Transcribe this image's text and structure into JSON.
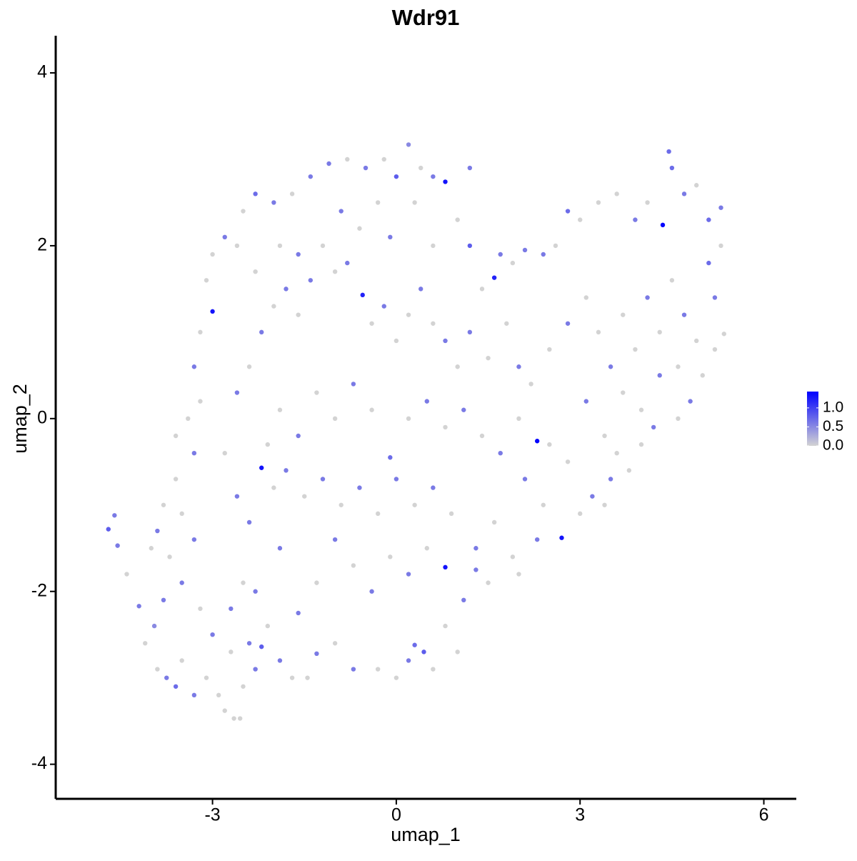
{
  "chart_data": {
    "type": "scatter",
    "title": "Wdr91",
    "x_label": "umap_1",
    "y_label": "umap_2",
    "xlim": [
      -5.56,
      6.53
    ],
    "xticks": [
      -3,
      0,
      3,
      6
    ],
    "ylim": [
      -4.4,
      4.43
    ],
    "yticks": [
      -4,
      -2,
      0,
      2,
      4
    ],
    "color_low": "#d3d3d3",
    "color_high": "#0000ff",
    "colorlim": [
      0,
      1.43
    ],
    "colorticks": [
      {
        "value": 0,
        "label": "0.0"
      },
      {
        "value": 0.5,
        "label": "0.5"
      },
      {
        "value": 1,
        "label": "1.0"
      }
    ],
    "x": [
      -4.7,
      -4.6,
      -4.55,
      -4.2,
      -4.4,
      -4.1,
      -3.95,
      -3.9,
      -3.75,
      -3.6,
      -3.5,
      -3.3,
      -3.1,
      -2.9,
      -2.65,
      -2.55,
      -2.8,
      -2.5,
      -2.3,
      -2.2,
      -1.9,
      -1.7,
      -1.45,
      -1.3,
      -1.0,
      -0.7,
      -0.3,
      0.0,
      0.2,
      0.3,
      0.45,
      0.6,
      1.0,
      0.8,
      1.1,
      1.3,
      1.5,
      1.3,
      1.6,
      1.9,
      2.0,
      2.3,
      2.4,
      2.1,
      2.7,
      3.0,
      3.2,
      3.4,
      3.5,
      3.6,
      3.8,
      4.0,
      4.2,
      4.6,
      4.8,
      5.0,
      5.2,
      5.35,
      5.2,
      5.1,
      5.3,
      5.3,
      5.1,
      4.9,
      4.7,
      4.45,
      4.5,
      4.35,
      4.1,
      3.9,
      3.6,
      3.3,
      3.0,
      2.8,
      2.6,
      2.4,
      2.1,
      1.9,
      1.7,
      1.6,
      1.4,
      1.2,
      1.0,
      0.8,
      0.6,
      0.4,
      0.2,
      0.0,
      -0.2,
      -0.5,
      -0.8,
      -1.1,
      -1.4,
      -1.7,
      -2.0,
      -2.3,
      -2.5,
      -2.6,
      -2.8,
      -3.0,
      -3.1,
      -3.0,
      -3.2,
      -3.3,
      -3.2,
      -3.4,
      -3.6,
      -3.3,
      -3.6,
      -3.8,
      -3.9,
      -3.7,
      -3.5,
      -3.2,
      -3.0,
      -2.7,
      -2.5,
      -2.3,
      -2.2,
      -2.0,
      -2.4,
      -2.6,
      -2.8,
      -2.6,
      -2.4,
      -2.2,
      -2.0,
      -1.8,
      -1.6,
      -1.4,
      -1.2,
      -1.0,
      -0.8,
      -0.55,
      -0.4,
      -0.2,
      0.0,
      0.2,
      0.4,
      0.6,
      0.8,
      1.0,
      1.2,
      1.5,
      1.8,
      2.0,
      2.2,
      2.5,
      2.8,
      3.1,
      3.3,
      3.5,
      3.7,
      3.9,
      4.1,
      4.3,
      4.5,
      4.7,
      4.9,
      4.6,
      4.3,
      4.0,
      3.7,
      3.4,
      3.1,
      2.8,
      2.5,
      2.3,
      2.0,
      1.7,
      1.4,
      1.1,
      0.8,
      0.5,
      0.2,
      -0.1,
      -0.4,
      -0.7,
      -1.0,
      -1.3,
      -1.6,
      -1.9,
      -2.1,
      -1.8,
      -1.5,
      -1.2,
      -0.9,
      -0.6,
      -0.3,
      0.0,
      0.3,
      0.6,
      0.9,
      0.8,
      0.5,
      0.2,
      -0.1,
      -0.4,
      -0.7,
      -1.0,
      -1.3,
      -1.6,
      -1.9,
      -2.1,
      -2.4,
      -2.7,
      -3.3,
      -3.5,
      -4.0,
      -3.8,
      -0.9,
      -0.6,
      -0.3,
      -1.9,
      -1.6,
      -2.3,
      -0.1,
      0.3,
      1.2,
      0.6
    ],
    "y": [
      -1.28,
      -1.12,
      -1.47,
      -2.17,
      -1.8,
      -2.6,
      -2.4,
      -2.9,
      -3.0,
      -3.1,
      -2.8,
      -3.2,
      -3.0,
      -3.2,
      -3.47,
      -3.47,
      -3.38,
      -3.1,
      -2.9,
      -2.64,
      -2.8,
      -3.0,
      -3.0,
      -2.72,
      -2.6,
      -2.9,
      -2.9,
      -3.0,
      -2.8,
      -2.62,
      -2.7,
      -2.9,
      -2.7,
      -2.4,
      -2.1,
      -1.75,
      -1.9,
      -1.5,
      -1.2,
      -1.6,
      -1.8,
      -1.4,
      -1.0,
      -0.7,
      -1.38,
      -1.1,
      -0.9,
      -1.0,
      -0.7,
      -0.4,
      -0.6,
      -0.3,
      -0.1,
      0.0,
      0.2,
      0.5,
      0.8,
      0.98,
      1.4,
      1.8,
      2.0,
      2.44,
      2.3,
      2.7,
      2.6,
      3.09,
      2.9,
      2.24,
      2.5,
      2.3,
      2.6,
      2.5,
      2.3,
      2.4,
      2.0,
      1.9,
      1.95,
      1.8,
      1.9,
      1.63,
      1.5,
      2.0,
      2.3,
      2.74,
      2.8,
      2.9,
      3.17,
      2.8,
      3.0,
      2.9,
      3.0,
      2.95,
      2.8,
      2.6,
      2.5,
      2.6,
      2.4,
      2.0,
      2.1,
      1.9,
      1.6,
      1.24,
      1.0,
      0.6,
      0.2,
      0.0,
      -0.2,
      -0.4,
      -0.7,
      -1.0,
      -1.3,
      -1.6,
      -1.9,
      -2.2,
      -2.5,
      -2.2,
      -1.9,
      -2.0,
      -0.57,
      -0.8,
      -1.2,
      -0.9,
      -0.4,
      0.3,
      0.6,
      1.0,
      1.3,
      1.5,
      1.2,
      1.6,
      2.0,
      1.7,
      1.8,
      1.43,
      1.1,
      1.3,
      0.9,
      1.2,
      1.5,
      1.1,
      0.9,
      0.6,
      1.0,
      0.7,
      1.1,
      0.6,
      0.4,
      0.8,
      1.1,
      1.4,
      1.0,
      0.6,
      1.2,
      0.8,
      1.4,
      1.0,
      1.6,
      1.2,
      0.9,
      0.6,
      0.5,
      0.1,
      0.3,
      -0.2,
      0.2,
      -0.5,
      -0.3,
      -0.26,
      0.0,
      -0.4,
      -0.2,
      0.1,
      -0.1,
      0.2,
      0.0,
      -0.45,
      0.1,
      0.4,
      0.0,
      0.3,
      -0.2,
      0.1,
      -0.3,
      -0.6,
      -0.9,
      -0.7,
      -1.0,
      -0.8,
      -1.1,
      -0.7,
      -1.0,
      -0.8,
      -1.1,
      -1.72,
      -1.5,
      -1.8,
      -1.6,
      -2.0,
      -1.7,
      -1.4,
      -1.9,
      -2.25,
      -1.5,
      -2.4,
      -2.6,
      -2.7,
      -1.4,
      -1.1,
      -1.5,
      -2.1,
      2.4,
      2.2,
      2.5,
      2.0,
      1.9,
      1.7,
      2.1,
      2.5,
      2.9,
      2.0
    ],
    "values": [
      0.8,
      0.6,
      0.6,
      0.6,
      0,
      0,
      0.5,
      0,
      0.6,
      0.7,
      0,
      0.6,
      0,
      0,
      0,
      0,
      0,
      0,
      0.6,
      0.8,
      0.6,
      0,
      0,
      0.6,
      0,
      0.6,
      0,
      0,
      0.6,
      0.7,
      0.8,
      0,
      0,
      0,
      0.6,
      0.6,
      0,
      0.6,
      0,
      0,
      0,
      0.6,
      0,
      0.6,
      1.3,
      0,
      0.6,
      0,
      0.6,
      0,
      0,
      0,
      0.6,
      0,
      0.6,
      0,
      0,
      0,
      0.6,
      0.7,
      0,
      0.6,
      0.7,
      0,
      0.6,
      0.7,
      0.7,
      1.4,
      0,
      0.6,
      0,
      0,
      0,
      0.7,
      0,
      0.6,
      0.6,
      0,
      0.6,
      1.2,
      0,
      0.8,
      0,
      1.3,
      0.6,
      0,
      0.5,
      0.8,
      0,
      0.6,
      0,
      0.6,
      0.6,
      0,
      0.6,
      0.7,
      0,
      0,
      0.6,
      0,
      0,
      1.3,
      0,
      0.6,
      0,
      0,
      0,
      0.6,
      0,
      0,
      0.6,
      0,
      0.6,
      0,
      0.6,
      0.6,
      0,
      0.6,
      1.3,
      0,
      0.6,
      0.6,
      0,
      0.6,
      0,
      0.6,
      0,
      0.6,
      0,
      0.6,
      0,
      0,
      0.6,
      1.2,
      0,
      0.6,
      0,
      0,
      0.6,
      0,
      0.6,
      0,
      0.6,
      0,
      0,
      0.6,
      0,
      0,
      0.6,
      0,
      0,
      0.6,
      0,
      0,
      0.6,
      0,
      0,
      0.6,
      0,
      0,
      0.6,
      0,
      0,
      0,
      0.6,
      0,
      0,
      1.4,
      0,
      0.6,
      0,
      0.6,
      0,
      0.6,
      0,
      0.7,
      0,
      0.6,
      0,
      0,
      0.6,
      0,
      0,
      0.6,
      0,
      0.6,
      0,
      0.6,
      0,
      0.6,
      0,
      0.6,
      0,
      1.3,
      0,
      0.6,
      0,
      0.6,
      0,
      0.6,
      0,
      0.6,
      0.6,
      0,
      0.6,
      0,
      0.6,
      0,
      0,
      0.6,
      0.6,
      0,
      0,
      0,
      0.6,
      0,
      0.6,
      0,
      0.6,
      0
    ]
  }
}
